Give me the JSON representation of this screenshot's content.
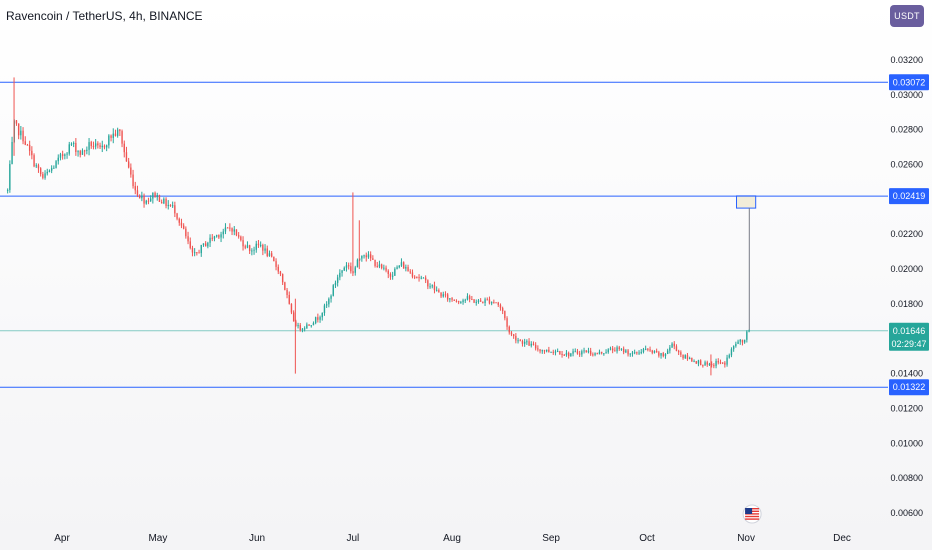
{
  "header": {
    "title": "Ravencoin / TetherUS, 4h, BINANCE",
    "currency_button": "USDT"
  },
  "colors": {
    "up": "#26a69a",
    "down": "#ef5350",
    "level_line": "#2962ff",
    "price_line": "#26a69a",
    "rect_fill": "#f2edd9",
    "rect_stroke": "#2962ff"
  },
  "flag_icon": "us-flag-icon",
  "chart_data": {
    "type": "candlestick",
    "symbol": "Ravencoin / TetherUS, 4h, BINANCE",
    "y_ticks": [
      "0.03200",
      "0.03000",
      "0.02800",
      "0.02600",
      "0.02200",
      "0.02000",
      "0.01800",
      "0.01400",
      "0.01200",
      "0.01000",
      "0.00800",
      "0.00600"
    ],
    "x_ticks": [
      "Apr",
      "May",
      "Jun",
      "Jul",
      "Aug",
      "Sep",
      "Oct",
      "Nov",
      "Dec"
    ],
    "horizontal_levels": [
      {
        "price": 0.03072,
        "label": "0.03072"
      },
      {
        "price": 0.02419,
        "label": "0.02419"
      },
      {
        "price": 0.01322,
        "label": "0.01322"
      }
    ],
    "last_price": {
      "price": 0.01646,
      "label": "0.01646",
      "countdown": "02:29:47"
    },
    "target_zone": {
      "from_date": "Oct 29",
      "to_date": "Nov 4",
      "low": 0.0235,
      "high": 0.0242
    },
    "close_path": [
      [
        "Mar 15",
        0.0245
      ],
      [
        "Mar 17",
        0.0283
      ],
      [
        "Mar 20",
        0.0275
      ],
      [
        "Mar 23",
        0.0262
      ],
      [
        "Mar 26",
        0.0252
      ],
      [
        "Mar 29",
        0.0258
      ],
      [
        "Apr 1",
        0.0265
      ],
      [
        "Apr 4",
        0.0272
      ],
      [
        "Apr 7",
        0.0266
      ],
      [
        "Apr 10",
        0.0272
      ],
      [
        "Apr 13",
        0.0268
      ],
      [
        "Apr 16",
        0.0276
      ],
      [
        "Apr 19",
        0.0279
      ],
      [
        "Apr 21",
        0.0263
      ],
      [
        "Apr 24",
        0.0245
      ],
      [
        "Apr 27",
        0.0239
      ],
      [
        "Apr 30",
        0.0243
      ],
      [
        "May 3",
        0.0238
      ],
      [
        "May 6",
        0.0235
      ],
      [
        "May 9",
        0.0222
      ],
      [
        "May 12",
        0.0207
      ],
      [
        "May 15",
        0.0213
      ],
      [
        "May 18",
        0.0218
      ],
      [
        "May 21",
        0.0221
      ],
      [
        "May 24",
        0.0224
      ],
      [
        "May 27",
        0.0216
      ],
      [
        "May 30",
        0.0211
      ],
      [
        "Jun 2",
        0.0214
      ],
      [
        "Jun 5",
        0.0207
      ],
      [
        "Jun 8",
        0.0199
      ],
      [
        "Jun 10",
        0.0187
      ],
      [
        "Jun 12",
        0.0172
      ],
      [
        "Jun 14",
        0.0166
      ],
      [
        "Jun 17",
        0.0168
      ],
      [
        "Jun 20",
        0.0172
      ],
      [
        "Jun 23",
        0.018
      ],
      [
        "Jun 26",
        0.0195
      ],
      [
        "Jun 29",
        0.0203
      ],
      [
        "Jul 1",
        0.0198
      ],
      [
        "Jul 4",
        0.021
      ],
      [
        "Jul 7",
        0.0205
      ],
      [
        "Jul 10",
        0.02
      ],
      [
        "Jul 13",
        0.0197
      ],
      [
        "Jul 16",
        0.0203
      ],
      [
        "Jul 19",
        0.0198
      ],
      [
        "Jul 22",
        0.0195
      ],
      [
        "Jul 25",
        0.0191
      ],
      [
        "Jul 28",
        0.0186
      ],
      [
        "Jul 31",
        0.0183
      ],
      [
        "Aug 3",
        0.0182
      ],
      [
        "Aug 6",
        0.0183
      ],
      [
        "Aug 9",
        0.0181
      ],
      [
        "Aug 12",
        0.0182
      ],
      [
        "Aug 15",
        0.0181
      ],
      [
        "Aug 17",
        0.0175
      ],
      [
        "Aug 19",
        0.0163
      ],
      [
        "Aug 22",
        0.0159
      ],
      [
        "Aug 25",
        0.0157
      ],
      [
        "Aug 28",
        0.0154
      ],
      [
        "Aug 31",
        0.0153
      ],
      [
        "Sep 3",
        0.0153
      ],
      [
        "Sep 6",
        0.0151
      ],
      [
        "Sep 9",
        0.0152
      ],
      [
        "Sep 12",
        0.0153
      ],
      [
        "Sep 15",
        0.0151
      ],
      [
        "Sep 18",
        0.0153
      ],
      [
        "Sep 21",
        0.0154
      ],
      [
        "Sep 24",
        0.0153
      ],
      [
        "Sep 27",
        0.0151
      ],
      [
        "Sep 30",
        0.0154
      ],
      [
        "Oct 3",
        0.0152
      ],
      [
        "Oct 6",
        0.015
      ],
      [
        "Oct 9",
        0.0157
      ],
      [
        "Oct 12",
        0.015
      ],
      [
        "Oct 15",
        0.0148
      ],
      [
        "Oct 18",
        0.0146
      ],
      [
        "Oct 21",
        0.0144
      ],
      [
        "Oct 23",
        0.0147
      ],
      [
        "Oct 25",
        0.0145
      ],
      [
        "Oct 27",
        0.0152
      ],
      [
        "Oct 29",
        0.0158
      ],
      [
        "Oct 31",
        0.0158
      ],
      [
        "Nov 1",
        0.0162
      ],
      [
        "Nov 2",
        0.0165
      ]
    ],
    "wicks": [
      {
        "date": "Mar 17",
        "high": 0.031,
        "low": 0.0265
      },
      {
        "date": "Jun 13",
        "high": 0.0183,
        "low": 0.014
      },
      {
        "date": "Jul 1",
        "high": 0.0244,
        "low": 0.0196
      },
      {
        "date": "Jul 3",
        "high": 0.0228,
        "low": 0.02
      },
      {
        "date": "Oct 21",
        "high": 0.0151,
        "low": 0.0139
      }
    ]
  }
}
